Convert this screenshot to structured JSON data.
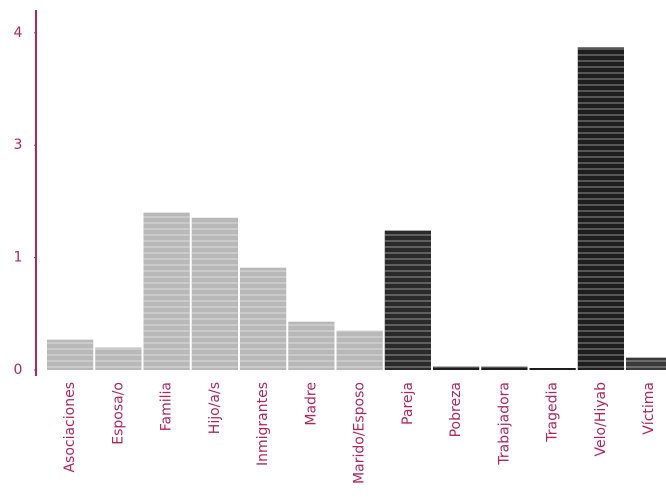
{
  "chart_data": {
    "type": "bar",
    "categories": [
      "Asociaciones",
      "Esposa/o",
      "Familia",
      "Hijo/a/s",
      "Inmigrantes",
      "Madre",
      "Marido/Esposo",
      "Pareja",
      "Pobreza",
      "Trabajadora",
      "Tragedia",
      "Velo/Hiyab",
      "Víctima"
    ],
    "values": [
      0.27,
      0.2,
      1.8,
      1.71,
      0.91,
      0.43,
      0.35,
      1.48,
      0.03,
      0.03,
      0.01,
      3.87,
      0.11
    ],
    "colors": [
      "#b8b8b8",
      "#b8b8b8",
      "#b8b8b8",
      "#b8b8b8",
      "#b8b8b8",
      "#b8b8b8",
      "#b8b8b8",
      "#2a2a2a",
      "#1e1e1e",
      "#1e1e1e",
      "#1e1e1e",
      "#1e1e1e",
      "#3a3a3a"
    ],
    "ylim": [
      0,
      4
    ],
    "yticks": [
      0,
      1,
      3,
      4
    ]
  }
}
